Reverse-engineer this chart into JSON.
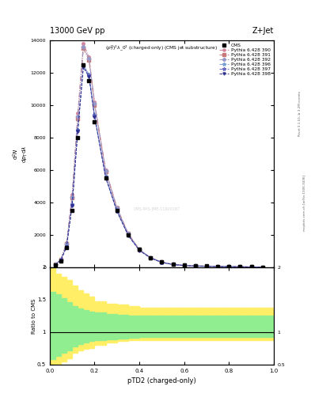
{
  "title_top": "13000 GeV pp",
  "title_right": "Z+Jet",
  "plot_title": "$(p_T^D)^2\\lambda\\_0^2$ (charged only) (CMS jet substructure)",
  "right_label1": "Rivet 3.1.10, ≥ 3.2M events",
  "right_label2": "mcplots.cern.ch [arXiv:1306.3436]",
  "watermark": "CMS-PAS-JME-11920187",
  "xlabel": "pTD2 (charged-only)",
  "xlim": [
    0,
    1
  ],
  "ylim_main_max": 14000,
  "ylim_ratio": [
    0.5,
    2.0
  ],
  "yticks_main": [
    0,
    2000,
    4000,
    6000,
    8000,
    10000,
    12000,
    14000
  ],
  "cms_x": [
    0.025,
    0.05,
    0.075,
    0.1,
    0.125,
    0.15,
    0.175,
    0.2,
    0.25,
    0.3,
    0.35,
    0.4,
    0.45,
    0.5,
    0.55,
    0.6,
    0.65,
    0.7,
    0.75,
    0.8,
    0.85,
    0.9,
    0.95
  ],
  "cms_y": [
    150,
    400,
    1200,
    3500,
    8000,
    12500,
    11500,
    9000,
    5500,
    3500,
    2000,
    1100,
    600,
    320,
    180,
    120,
    90,
    70,
    55,
    45,
    35,
    28,
    20
  ],
  "pythia_390_x": [
    0.025,
    0.05,
    0.075,
    0.1,
    0.125,
    0.15,
    0.175,
    0.2,
    0.25,
    0.3,
    0.35,
    0.4,
    0.45,
    0.5,
    0.55,
    0.6,
    0.65,
    0.7,
    0.75,
    0.8,
    0.85,
    0.9,
    0.95
  ],
  "pythia_390_y": [
    180,
    500,
    1500,
    4500,
    9500,
    13800,
    13000,
    10200,
    6000,
    3700,
    2100,
    1100,
    600,
    320,
    180,
    120,
    90,
    70,
    55,
    43,
    33,
    26,
    18
  ],
  "pythia_391_x": [
    0.025,
    0.05,
    0.075,
    0.1,
    0.125,
    0.15,
    0.175,
    0.2,
    0.25,
    0.3,
    0.35,
    0.4,
    0.45,
    0.5,
    0.55,
    0.6,
    0.65,
    0.7,
    0.75,
    0.8,
    0.85,
    0.9,
    0.95
  ],
  "pythia_391_y": [
    175,
    490,
    1450,
    4300,
    9200,
    13500,
    12800,
    10000,
    5900,
    3650,
    2080,
    1090,
    595,
    316,
    178,
    118,
    88,
    68,
    53,
    42,
    32,
    25,
    17
  ],
  "pythia_392_x": [
    0.025,
    0.05,
    0.075,
    0.1,
    0.125,
    0.15,
    0.175,
    0.2,
    0.25,
    0.3,
    0.35,
    0.4,
    0.45,
    0.5,
    0.55,
    0.6,
    0.65,
    0.7,
    0.75,
    0.8,
    0.85,
    0.9,
    0.95
  ],
  "pythia_392_y": [
    177,
    492,
    1460,
    4350,
    9300,
    13600,
    12900,
    10100,
    5950,
    3660,
    2090,
    1095,
    597,
    318,
    179,
    119,
    89,
    69,
    54,
    42,
    32,
    25,
    17
  ],
  "pythia_396_x": [
    0.025,
    0.05,
    0.075,
    0.1,
    0.125,
    0.15,
    0.175,
    0.2,
    0.25,
    0.3,
    0.35,
    0.4,
    0.45,
    0.5,
    0.55,
    0.6,
    0.65,
    0.7,
    0.75,
    0.8,
    0.85,
    0.9,
    0.95
  ],
  "pythia_396_y": [
    160,
    450,
    1300,
    3900,
    8500,
    12500,
    11900,
    9400,
    5600,
    3500,
    2000,
    1060,
    580,
    308,
    174,
    115,
    86,
    67,
    52,
    41,
    31,
    24,
    16
  ],
  "pythia_397_x": [
    0.025,
    0.05,
    0.075,
    0.1,
    0.125,
    0.15,
    0.175,
    0.2,
    0.25,
    0.3,
    0.35,
    0.4,
    0.45,
    0.5,
    0.55,
    0.6,
    0.65,
    0.7,
    0.75,
    0.8,
    0.85,
    0.9,
    0.95
  ],
  "pythia_397_y": [
    158,
    445,
    1290,
    3870,
    8450,
    12450,
    11850,
    9350,
    5570,
    3480,
    1990,
    1055,
    578,
    305,
    172,
    114,
    85,
    66,
    51,
    40,
    30,
    23,
    16
  ],
  "pythia_398_x": [
    0.025,
    0.05,
    0.075,
    0.1,
    0.125,
    0.15,
    0.175,
    0.2,
    0.25,
    0.3,
    0.35,
    0.4,
    0.45,
    0.5,
    0.55,
    0.6,
    0.65,
    0.7,
    0.75,
    0.8,
    0.85,
    0.9,
    0.95
  ],
  "pythia_398_y": [
    155,
    440,
    1270,
    3820,
    8380,
    12350,
    11760,
    9280,
    5520,
    3450,
    1970,
    1045,
    572,
    301,
    170,
    112,
    84,
    65,
    50,
    39,
    29,
    22,
    15
  ],
  "line_colors": {
    "390": "#d4849a",
    "391": "#c87878",
    "392": "#9898c8",
    "396": "#78a0d4",
    "397": "#6868c0",
    "398": "#303090"
  },
  "line_styles": {
    "390": "-.",
    "391": "-.",
    "392": "-.",
    "396": "--",
    "397": "--",
    "398": "--"
  },
  "markers": {
    "390": "o",
    "391": "s",
    "392": "D",
    "396": "*",
    "397": "*",
    "398": "v"
  },
  "ratio_x_edges": [
    0.0,
    0.025,
    0.05,
    0.075,
    0.1,
    0.125,
    0.15,
    0.175,
    0.2,
    0.25,
    0.3,
    0.35,
    0.4,
    0.45,
    0.5,
    0.55,
    0.6,
    0.65,
    0.7,
    0.75,
    0.8,
    0.85,
    0.9,
    0.95,
    1.0
  ],
  "ratio_yellow_lo": [
    0.42,
    0.5,
    0.55,
    0.6,
    0.68,
    0.72,
    0.74,
    0.76,
    0.8,
    0.84,
    0.86,
    0.88,
    0.88,
    0.88,
    0.88,
    0.88,
    0.88,
    0.88,
    0.88,
    0.88,
    0.88,
    0.88,
    0.88,
    0.88
  ],
  "ratio_yellow_hi": [
    2.0,
    1.9,
    1.85,
    1.8,
    1.72,
    1.65,
    1.6,
    1.55,
    1.48,
    1.44,
    1.42,
    1.4,
    1.38,
    1.38,
    1.38,
    1.38,
    1.38,
    1.38,
    1.38,
    1.38,
    1.38,
    1.38,
    1.38,
    1.38
  ],
  "ratio_green_lo": [
    0.58,
    0.63,
    0.68,
    0.72,
    0.78,
    0.82,
    0.84,
    0.86,
    0.88,
    0.89,
    0.9,
    0.91,
    0.92,
    0.92,
    0.92,
    0.92,
    0.92,
    0.92,
    0.92,
    0.92,
    0.92,
    0.92,
    0.92,
    0.92
  ],
  "ratio_green_hi": [
    1.62,
    1.58,
    1.52,
    1.46,
    1.4,
    1.36,
    1.34,
    1.32,
    1.3,
    1.28,
    1.27,
    1.26,
    1.25,
    1.25,
    1.25,
    1.25,
    1.25,
    1.25,
    1.25,
    1.25,
    1.25,
    1.25,
    1.25,
    1.25
  ]
}
